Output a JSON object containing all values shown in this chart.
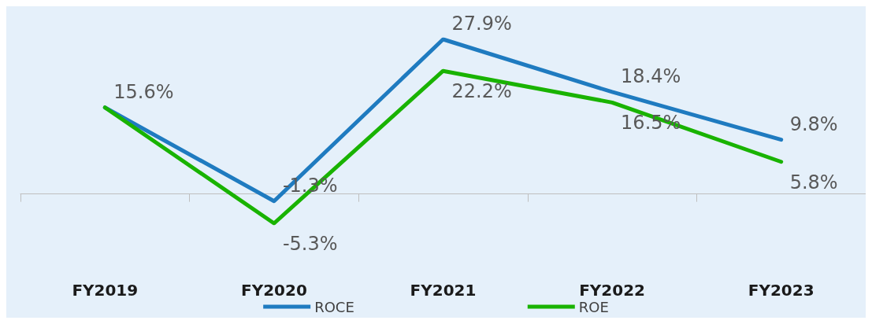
{
  "chart_data": {
    "type": "line",
    "categories": [
      "FY2019",
      "FY2020",
      "FY2021",
      "FY2022",
      "FY2023"
    ],
    "series": [
      {
        "name": "ROCE",
        "color": "#1f7bc0",
        "values": [
          15.6,
          -1.3,
          27.9,
          18.4,
          9.8
        ],
        "value_labels": [
          "15.6%",
          "-1.3%",
          "27.9%",
          "18.4%",
          "9.8%"
        ]
      },
      {
        "name": "ROE",
        "color": "#19b300",
        "values": [
          15.6,
          -5.3,
          22.2,
          16.5,
          5.8
        ],
        "value_labels": [
          null,
          "-5.3%",
          "22.2%",
          "16.5%",
          "5.8%"
        ]
      }
    ],
    "legend": "bottom",
    "grid": false,
    "marker": "none",
    "line_style": "solid"
  }
}
